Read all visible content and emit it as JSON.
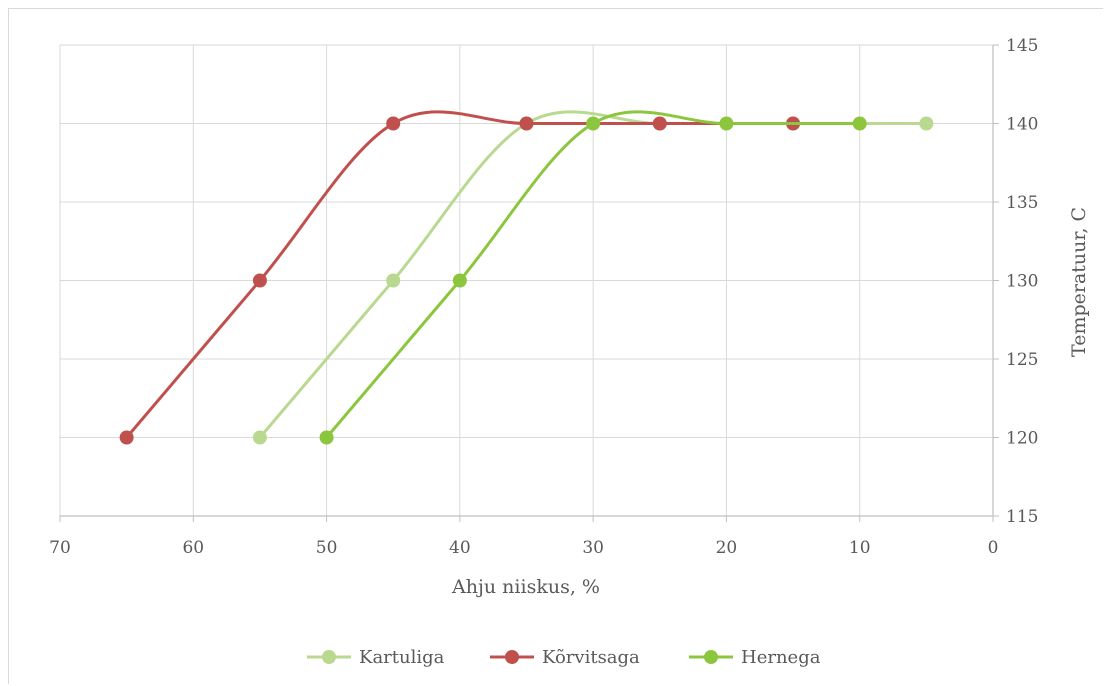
{
  "chart_data": {
    "type": "line",
    "xlabel": "Ahju niiskus, %",
    "ylabel": "Temperatuur, C",
    "xlim": [
      70,
      0
    ],
    "ylim": [
      115,
      145
    ],
    "x_reversed": true,
    "y_axis_side": "right",
    "x_ticks": [
      70,
      60,
      50,
      40,
      30,
      20,
      10,
      0
    ],
    "y_ticks": [
      115,
      120,
      125,
      130,
      135,
      140,
      145
    ],
    "grid": true,
    "smoothed": true,
    "legend_position": "bottom",
    "series": [
      {
        "name": "Kartuliga",
        "color": "#b8d98f",
        "points": [
          [
            55,
            120
          ],
          [
            45,
            130
          ],
          [
            35,
            140
          ],
          [
            25,
            140
          ],
          [
            15,
            140
          ],
          [
            5,
            140
          ]
        ]
      },
      {
        "name": "Kõrvitsaga",
        "color": "#c0504d",
        "points": [
          [
            65,
            120
          ],
          [
            55,
            130
          ],
          [
            45,
            140
          ],
          [
            35,
            140
          ],
          [
            25,
            140
          ],
          [
            15,
            140
          ]
        ]
      },
      {
        "name": "Hernega",
        "color": "#8cc63e",
        "points": [
          [
            50,
            120
          ],
          [
            40,
            130
          ],
          [
            30,
            140
          ],
          [
            20,
            140
          ],
          [
            10,
            140
          ]
        ]
      }
    ]
  }
}
